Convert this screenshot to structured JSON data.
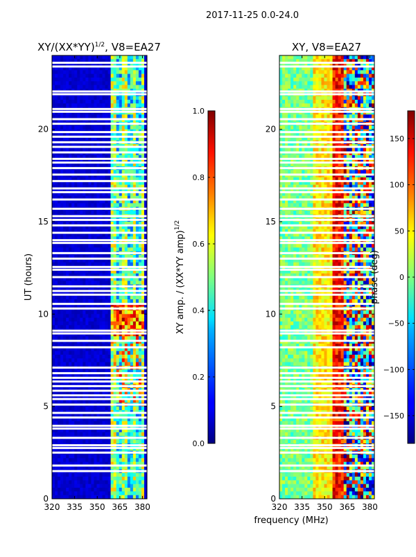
{
  "suptitle": "2017-11-25 0.0-24.0",
  "shared_xlabel": "frequency (MHz)",
  "chart_data": [
    {
      "type": "heatmap",
      "title_base": "XY/(XX*YY)",
      "title_exponent": "1/2",
      "title_suffix": ", V8=EA27",
      "xlabel": "frequency (MHz)",
      "ylabel": "UT (hours)",
      "xlim": [
        320,
        383
      ],
      "ylim": [
        0,
        24
      ],
      "xticks": [
        320,
        335,
        350,
        365,
        380
      ],
      "yticks": [
        0,
        5,
        10,
        15,
        20
      ],
      "colorbar": {
        "label": "XY amp. / (XX*YY amp)",
        "label_exponent": "1/2",
        "range": [
          0,
          1
        ],
        "ticks": [
          "0.0",
          "0.2",
          "0.4",
          "0.6",
          "0.8",
          "1.0"
        ],
        "colormap": "jet"
      }
    },
    {
      "type": "heatmap",
      "title": "XY, V8=EA27",
      "xlabel": "frequency (MHz)",
      "ylabel": "",
      "xlim": [
        320,
        383
      ],
      "ylim": [
        0,
        24
      ],
      "xticks": [
        320,
        335,
        350,
        365,
        380
      ],
      "yticks": [
        0,
        5,
        10,
        15,
        20
      ],
      "colorbar": {
        "label": "phase (deg)",
        "range": [
          -180,
          180
        ],
        "ticks": [
          "−150",
          "−100",
          "−50",
          "0",
          "50",
          "100",
          "150"
        ],
        "colormap": "jet"
      }
    }
  ],
  "flagged_gaps_ut_hours": [
    1.5,
    1.8,
    2.5,
    2.75,
    2.9,
    3.3,
    3.8,
    3.95,
    4.4,
    4.65,
    5.1,
    5.4,
    5.6,
    5.85,
    6.1,
    6.35,
    6.55,
    6.8,
    7.1,
    8.2,
    8.55,
    8.95,
    9.1,
    10.3,
    10.55,
    11.05,
    11.25,
    11.5,
    12.0,
    12.4,
    12.55,
    13.0,
    13.3,
    13.85,
    14.0,
    14.4,
    14.8,
    15.1,
    15.3,
    15.7,
    16.2,
    16.6,
    16.8,
    17.2,
    17.55,
    17.9,
    18.2,
    18.4,
    18.75,
    19.05,
    19.3,
    19.6,
    19.85,
    20.3,
    20.55,
    20.95,
    21.1,
    21.9,
    22.05,
    23.4,
    23.6
  ]
}
